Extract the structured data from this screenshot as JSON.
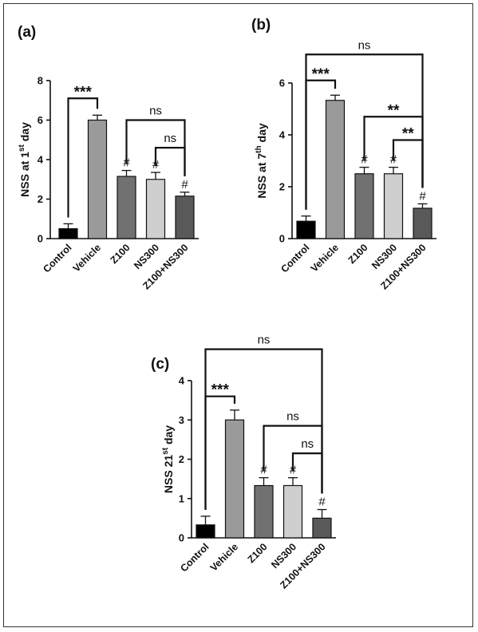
{
  "chart_data": [
    {
      "panel_label": "(a)",
      "type": "bar",
      "ylabel": {
        "pre": "NSS at 1",
        "sup": "st",
        "post": " day"
      },
      "categories": [
        "Control",
        "Vehicle",
        "Z100",
        "NS300",
        "Z100+NS300"
      ],
      "values": [
        0.5,
        6.0,
        3.15,
        3.0,
        2.15
      ],
      "errors": [
        0.25,
        0.25,
        0.3,
        0.35,
        0.2
      ],
      "colors": [
        "#000000",
        "#9a9a9a",
        "#717171",
        "#cfcfcf",
        "#595959"
      ],
      "ylim": [
        0,
        8
      ],
      "yticks": [
        0,
        2,
        4,
        6,
        8
      ],
      "markers": [
        "",
        "",
        "#",
        "#",
        "#"
      ],
      "comparisons": [
        {
          "from": 0,
          "to": 1,
          "label": "***",
          "y": 7.1
        },
        {
          "from": 2,
          "to": 4,
          "label": "ns",
          "y": 6.0
        },
        {
          "from": 3,
          "to": 4,
          "label": "ns",
          "y": 4.6
        }
      ]
    },
    {
      "panel_label": "(b)",
      "type": "bar",
      "ylabel": {
        "pre": "NSS at 7",
        "sup": "th",
        "post": " day"
      },
      "categories": [
        "Control",
        "Vehicle",
        "Z100",
        "NS300",
        "Z100+NS300"
      ],
      "values": [
        0.67,
        5.33,
        2.5,
        2.5,
        1.17
      ],
      "errors": [
        0.2,
        0.2,
        0.25,
        0.25,
        0.17
      ],
      "colors": [
        "#000000",
        "#9a9a9a",
        "#717171",
        "#cfcfcf",
        "#595959"
      ],
      "ylim": [
        0,
        6
      ],
      "yticks": [
        0,
        2,
        4,
        6
      ],
      "markers": [
        "",
        "",
        "#",
        "#",
        "#"
      ],
      "comparisons": [
        {
          "from": 0,
          "to": 4,
          "label": "ns",
          "y": 7.1
        },
        {
          "from": 0,
          "to": 1,
          "label": "***",
          "y": 6.1
        },
        {
          "from": 2,
          "to": 4,
          "label": "**",
          "y": 4.7
        },
        {
          "from": 3,
          "to": 4,
          "label": "**",
          "y": 3.8
        }
      ]
    },
    {
      "panel_label": "(c)",
      "type": "bar",
      "ylabel": {
        "pre": "NSS 21",
        "sup": "st",
        "post": " day"
      },
      "categories": [
        "Control",
        "Vehicle",
        "Z100",
        "NS300",
        "Z100+NS300"
      ],
      "values": [
        0.33,
        3.0,
        1.33,
        1.33,
        0.5
      ],
      "errors": [
        0.22,
        0.25,
        0.2,
        0.2,
        0.22
      ],
      "colors": [
        "#000000",
        "#9a9a9a",
        "#717171",
        "#cfcfcf",
        "#595959"
      ],
      "ylim": [
        0,
        4
      ],
      "yticks": [
        0,
        1,
        2,
        3,
        4
      ],
      "markers": [
        "",
        "",
        "#",
        "#",
        "#"
      ],
      "comparisons": [
        {
          "from": 0,
          "to": 4,
          "label": "ns",
          "y": 4.8
        },
        {
          "from": 0,
          "to": 1,
          "label": "***",
          "y": 3.6
        },
        {
          "from": 2,
          "to": 4,
          "label": "ns",
          "y": 2.85
        },
        {
          "from": 3,
          "to": 4,
          "label": "ns",
          "y": 2.15
        }
      ]
    }
  ]
}
